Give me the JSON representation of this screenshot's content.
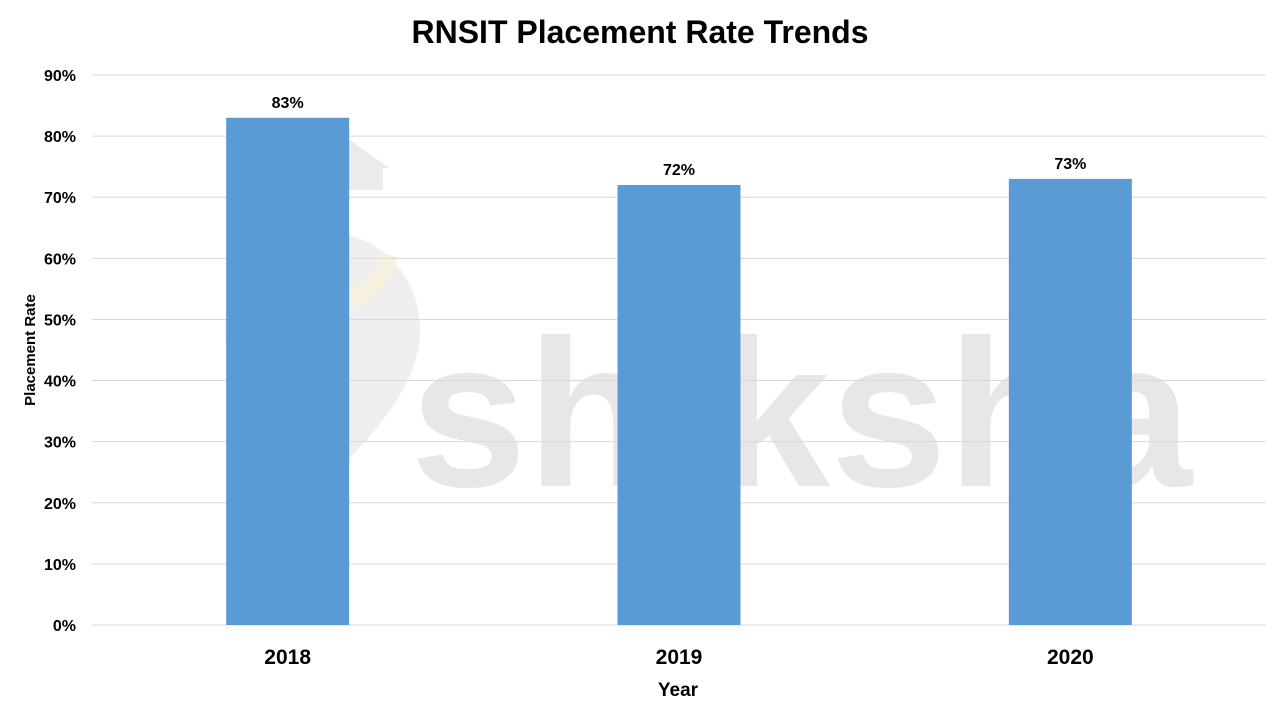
{
  "watermark": {
    "text": "shiksha",
    "icon": "graduation-cap-pin-logo"
  },
  "colors": {
    "bar": "#5b9bd5",
    "grid": "#d9d9d9",
    "text": "#000000",
    "watermark": "#e7e7e7"
  },
  "chart_data": {
    "type": "bar",
    "title": "RNSIT Placement Rate Trends",
    "xlabel": "Year",
    "ylabel": "Placement Rate",
    "categories": [
      "2018",
      "2019",
      "2020"
    ],
    "values": [
      83,
      72,
      73
    ],
    "data_labels": [
      "83%",
      "72%",
      "73%"
    ],
    "ylim": [
      0,
      90
    ],
    "yticks": [
      0,
      10,
      20,
      30,
      40,
      50,
      60,
      70,
      80,
      90
    ],
    "ytick_labels": [
      "0%",
      "10%",
      "20%",
      "30%",
      "40%",
      "50%",
      "60%",
      "70%",
      "80%",
      "90%"
    ],
    "grid": true,
    "legend": "none"
  }
}
